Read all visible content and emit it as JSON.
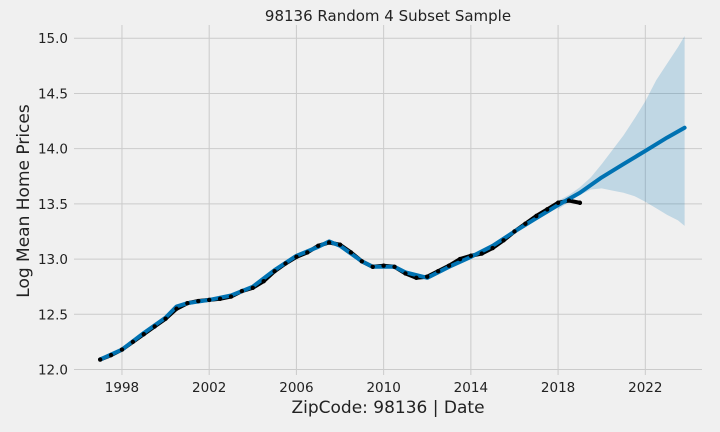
{
  "chart_data": {
    "type": "line",
    "title": "98136 Random 4 Subset Sample",
    "xlabel": "ZipCode: 98136 | Date",
    "ylabel": "Log Mean Home Prices",
    "xlim": [
      1995.8,
      2024.6
    ],
    "ylim": [
      11.95,
      15.12
    ],
    "x_ticks": [
      1998,
      2002,
      2006,
      2010,
      2014,
      2018,
      2022
    ],
    "x_tick_labels": [
      "1998",
      "2002",
      "2006",
      "2010",
      "2014",
      "2018",
      "2022"
    ],
    "y_ticks": [
      12.0,
      12.5,
      13.0,
      13.5,
      14.0,
      14.5,
      15.0
    ],
    "y_tick_labels": [
      "12.0",
      "12.5",
      "13.0",
      "13.5",
      "14.0",
      "14.5",
      "15.0"
    ],
    "grid": true,
    "legend": "none",
    "colors": {
      "background": "#f0f0f0",
      "grid": "#cbcbcb",
      "observed": "#000000",
      "forecast": "#0072b2",
      "interval": "#0072b2"
    },
    "series": [
      {
        "role": "observed",
        "x": [
          1997.0,
          1997.5,
          1998.0,
          1998.5,
          1999.0,
          1999.5,
          2000.0,
          2000.5,
          2001.0,
          2001.5,
          2002.0,
          2002.5,
          2003.0,
          2003.5,
          2004.0,
          2004.5,
          2005.0,
          2005.5,
          2006.0,
          2006.5,
          2007.0,
          2007.5,
          2008.0,
          2008.5,
          2009.0,
          2009.5,
          2010.0,
          2010.5,
          2011.0,
          2011.5,
          2012.0,
          2012.5,
          2013.0,
          2013.5,
          2014.0,
          2014.5,
          2015.0,
          2015.5,
          2016.0,
          2016.5,
          2017.0,
          2017.5,
          2018.0,
          2018.5,
          2019.0
        ],
        "y": [
          12.09,
          12.13,
          12.18,
          12.25,
          12.32,
          12.39,
          12.46,
          12.55,
          12.6,
          12.62,
          12.63,
          12.64,
          12.66,
          12.71,
          12.74,
          12.8,
          12.89,
          12.96,
          13.02,
          13.06,
          13.12,
          13.15,
          13.13,
          13.06,
          12.98,
          12.93,
          12.94,
          12.93,
          12.87,
          12.83,
          12.84,
          12.89,
          12.94,
          13.0,
          13.03,
          13.05,
          13.1,
          13.17,
          13.25,
          13.32,
          13.39,
          13.45,
          13.51,
          13.53,
          13.51
        ]
      },
      {
        "role": "forecast",
        "x": [
          1997.0,
          1998.0,
          1999.0,
          2000.0,
          2000.5,
          2001.0,
          2002.0,
          2003.0,
          2004.0,
          2005.0,
          2006.0,
          2007.0,
          2007.5,
          2008.0,
          2009.0,
          2009.5,
          2010.0,
          2010.5,
          2011.0,
          2012.0,
          2013.0,
          2014.0,
          2015.0,
          2016.0,
          2017.0,
          2018.0,
          2019.0,
          2020.0,
          2021.0,
          2022.0,
          2023.0,
          2023.8
        ],
        "y": [
          12.09,
          12.18,
          12.33,
          12.47,
          12.57,
          12.6,
          12.63,
          12.67,
          12.75,
          12.9,
          13.03,
          13.11,
          13.16,
          13.12,
          12.98,
          12.93,
          12.93,
          12.93,
          12.88,
          12.83,
          12.93,
          13.02,
          13.12,
          13.25,
          13.37,
          13.49,
          13.6,
          13.74,
          13.86,
          13.98,
          14.1,
          14.19
        ]
      }
    ],
    "interval": {
      "x": [
        2018.0,
        2018.5,
        2019.0,
        2019.5,
        2020.0,
        2020.5,
        2021.0,
        2021.5,
        2022.0,
        2022.5,
        2023.0,
        2023.5,
        2023.8
      ],
      "upper": [
        13.53,
        13.58,
        13.65,
        13.74,
        13.86,
        13.99,
        14.12,
        14.27,
        14.43,
        14.62,
        14.77,
        14.92,
        15.02
      ],
      "lower": [
        13.45,
        13.52,
        13.58,
        13.63,
        13.64,
        13.62,
        13.6,
        13.57,
        13.52,
        13.46,
        13.4,
        13.35,
        13.3
      ]
    }
  }
}
